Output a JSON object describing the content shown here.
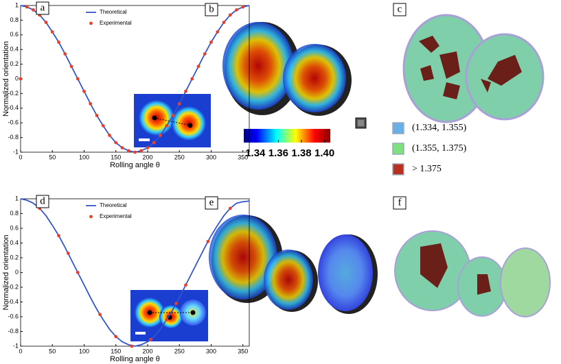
{
  "chart_data": [
    {
      "type": "line",
      "panel": "a",
      "xlabel": "Rolling angle θ",
      "ylabel": "Normalized orientation",
      "xlim": [
        0,
        360
      ],
      "ylim": [
        -1,
        1
      ],
      "xticks": [
        0,
        50,
        100,
        150,
        200,
        250,
        300,
        350
      ],
      "yticks": [
        -1,
        -0.8,
        -0.6,
        -0.4,
        -0.2,
        0,
        0.2,
        0.4,
        0.6,
        0.8,
        1
      ],
      "series": [
        {
          "name": "Theoretical",
          "color": "#3355cc",
          "x": [
            0,
            10,
            20,
            30,
            40,
            50,
            60,
            70,
            80,
            90,
            100,
            110,
            120,
            130,
            140,
            150,
            160,
            170,
            180,
            190,
            200,
            210,
            220,
            230,
            240,
            250,
            260,
            270,
            280,
            290,
            300,
            310,
            320,
            330,
            340,
            350,
            360
          ],
          "values": [
            1,
            0.98,
            0.94,
            0.87,
            0.77,
            0.64,
            0.5,
            0.34,
            0.17,
            0,
            -0.17,
            -0.34,
            -0.5,
            -0.64,
            -0.77,
            -0.87,
            -0.94,
            -0.98,
            -1,
            -0.98,
            -0.94,
            -0.87,
            -0.77,
            -0.64,
            -0.5,
            -0.34,
            -0.17,
            0,
            0.17,
            0.34,
            0.5,
            0.64,
            0.77,
            0.87,
            0.94,
            0.98,
            1
          ]
        },
        {
          "name": "Experimental",
          "color": "#e8402a",
          "x": [
            0,
            10,
            20,
            30,
            40,
            50,
            60,
            70,
            80,
            90,
            100,
            110,
            120,
            130,
            140,
            150,
            160,
            170,
            180,
            190,
            200,
            210,
            220,
            230,
            240,
            250,
            260,
            270,
            280,
            290,
            300,
            310,
            320,
            330,
            340,
            350
          ],
          "values": [
            0,
            0.98,
            0.94,
            0.87,
            0.77,
            0.64,
            0.5,
            0.34,
            0.17,
            0,
            -0.17,
            -0.34,
            -0.5,
            -0.64,
            -0.77,
            -0.87,
            -0.94,
            -0.98,
            -1,
            -0.98,
            -0.94,
            -0.87,
            -0.77,
            -0.64,
            -0.5,
            -0.34,
            -0.17,
            0,
            0.17,
            0.34,
            0.5,
            0.64,
            0.77,
            0.87,
            0.94,
            0.98
          ]
        }
      ]
    },
    {
      "type": "line",
      "panel": "d",
      "xlabel": "Rolling angle θ",
      "ylabel": "Normalized orientation",
      "xlim": [
        0,
        360
      ],
      "ylim": [
        -1,
        1
      ],
      "xticks": [
        0,
        50,
        100,
        150,
        200,
        250,
        300,
        350
      ],
      "yticks": [
        -1,
        -0.8,
        -0.6,
        -0.4,
        -0.2,
        0,
        0.2,
        0.4,
        0.6,
        0.8,
        1
      ],
      "series": [
        {
          "name": "Theoretical",
          "color": "#3355cc",
          "x": [
            0,
            10,
            20,
            30,
            40,
            50,
            60,
            70,
            80,
            90,
            100,
            110,
            120,
            130,
            140,
            150,
            160,
            170,
            180,
            190,
            200,
            210,
            220,
            230,
            240,
            250,
            260,
            270,
            280,
            290,
            300,
            310,
            320,
            330,
            340,
            350,
            360
          ],
          "values": [
            1,
            0.98,
            0.94,
            0.87,
            0.77,
            0.64,
            0.5,
            0.34,
            0.17,
            0,
            -0.17,
            -0.34,
            -0.5,
            -0.64,
            -0.77,
            -0.87,
            -0.94,
            -0.98,
            -1,
            -0.98,
            -0.94,
            -0.87,
            -0.77,
            -0.64,
            -0.5,
            -0.34,
            -0.17,
            0,
            0.17,
            0.34,
            0.5,
            0.64,
            0.77,
            0.87,
            0.94,
            0.96,
            0.97
          ]
        },
        {
          "name": "Experimental",
          "color": "#e8402a",
          "x": [
            30,
            60,
            75,
            90,
            125,
            150,
            175,
            205,
            230,
            245,
            260,
            295,
            330
          ],
          "values": [
            0.87,
            0.5,
            0.26,
            0,
            -0.57,
            -0.87,
            -1,
            -0.91,
            -0.64,
            -0.42,
            -0.17,
            0.42,
            0.87
          ]
        }
      ]
    }
  ],
  "panels": [
    "b",
    "c",
    "e",
    "f"
  ],
  "colorbar": {
    "ticks": [
      1.34,
      1.36,
      1.38,
      {
        "value": 1.4,
        "label": "1.40"
      }
    ],
    "range": [
      1.33,
      1.405
    ]
  },
  "legend": [
    {
      "label": "(1.334, 1.355)",
      "color": "#6ab0e8"
    },
    {
      "label": "(1.355, 1.375)",
      "color": "#7fe07f"
    },
    {
      "label": "> 1.375",
      "color": "#b83020"
    }
  ]
}
